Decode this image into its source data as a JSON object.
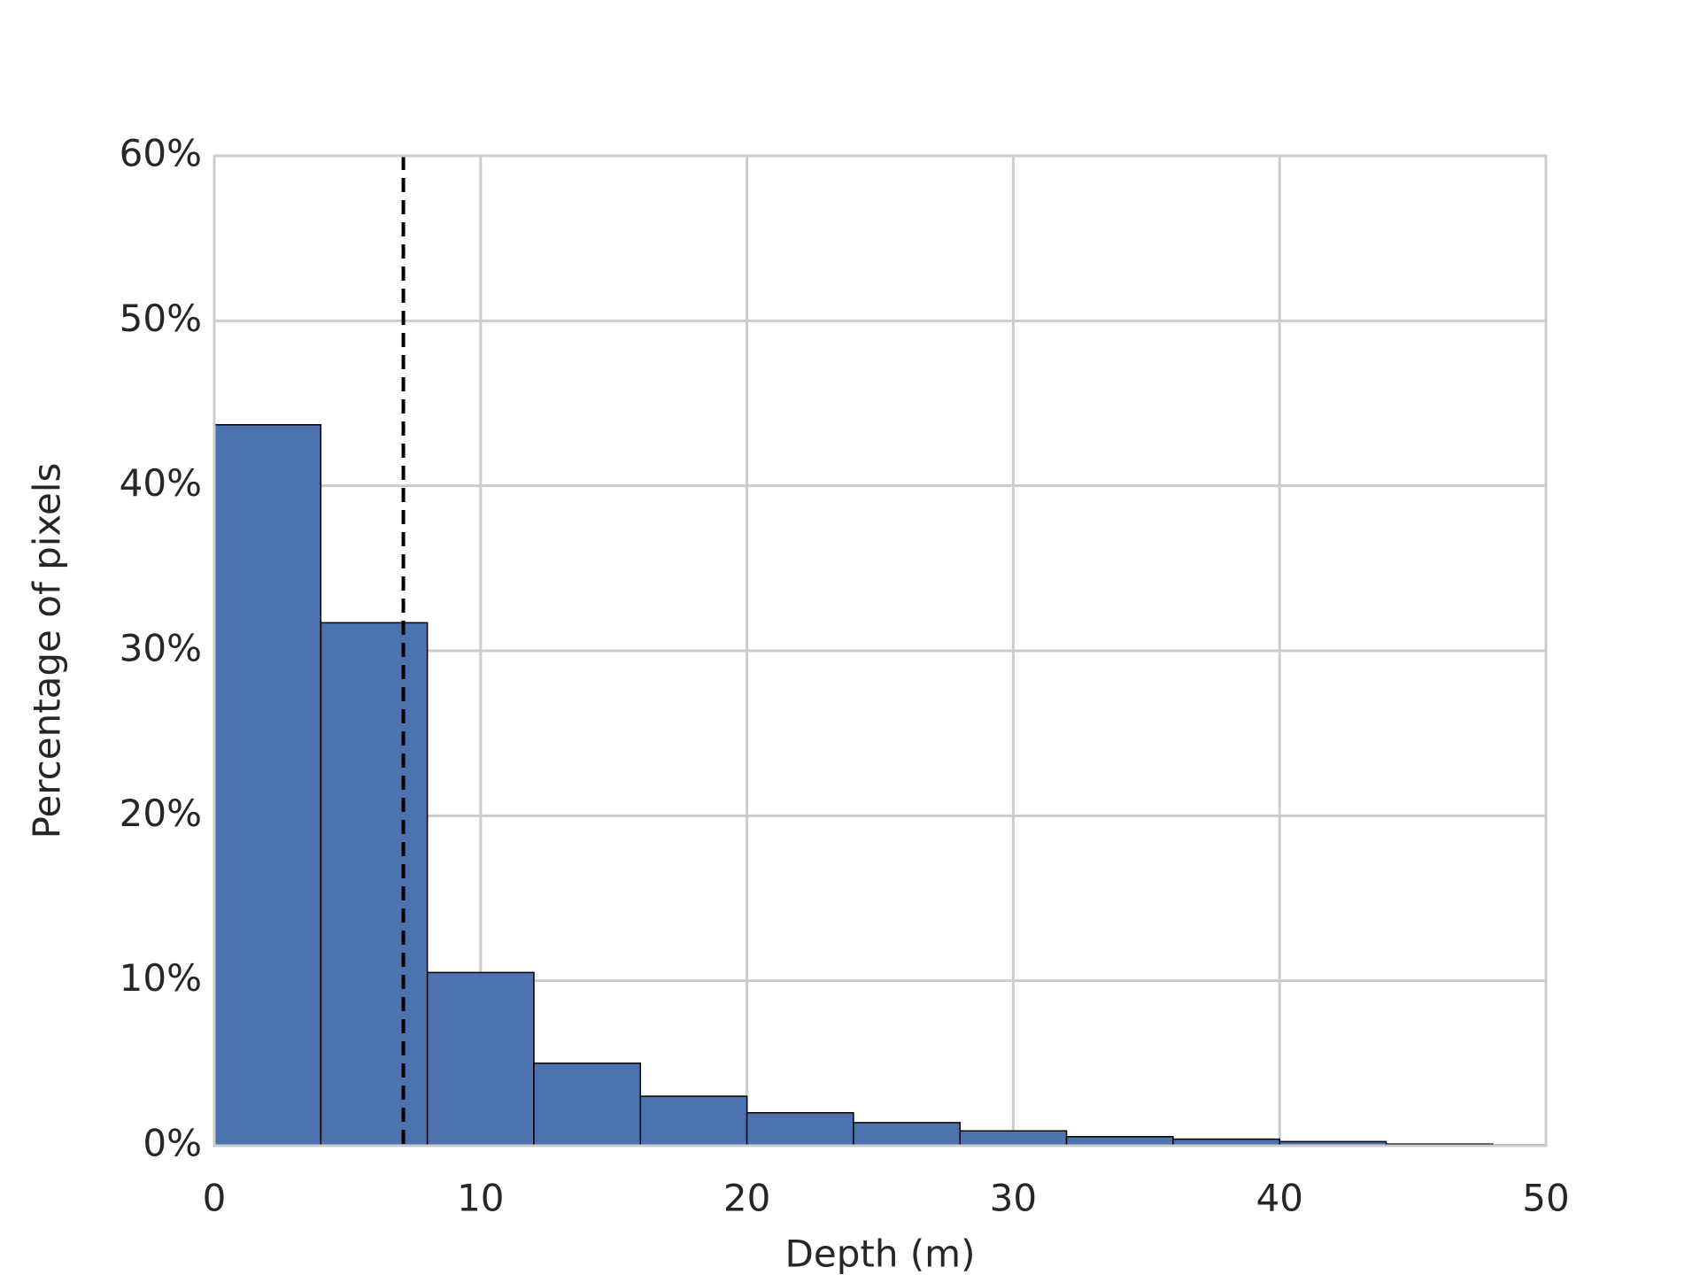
{
  "chart_data": {
    "type": "histogram",
    "x_label": "Depth (m)",
    "y_label": "Percentage of pixels",
    "bins": [
      0,
      4,
      8,
      12,
      16,
      20,
      24,
      28,
      32,
      36,
      40,
      44,
      48,
      52
    ],
    "values": [
      43.7,
      31.7,
      10.5,
      5.0,
      3.0,
      2.0,
      1.4,
      0.9,
      0.55,
      0.4,
      0.25,
      0.1,
      0.05
    ],
    "color": "#4c72b0",
    "edge_color": "#000000",
    "vline": 7.1,
    "vline_color": "#000000",
    "xlim": [
      0,
      50
    ],
    "xticks": [
      0,
      10,
      20,
      30,
      40,
      50
    ],
    "ylim": [
      0,
      60
    ],
    "yticks": [
      {
        "value": 0,
        "label": "0%"
      },
      {
        "value": 10,
        "label": "10%"
      },
      {
        "value": 20,
        "label": "20%"
      },
      {
        "value": 30,
        "label": "30%"
      },
      {
        "value": 40,
        "label": "40%"
      },
      {
        "value": 50,
        "label": "50%"
      },
      {
        "value": 60,
        "label": "60%"
      }
    ],
    "grid": true
  }
}
